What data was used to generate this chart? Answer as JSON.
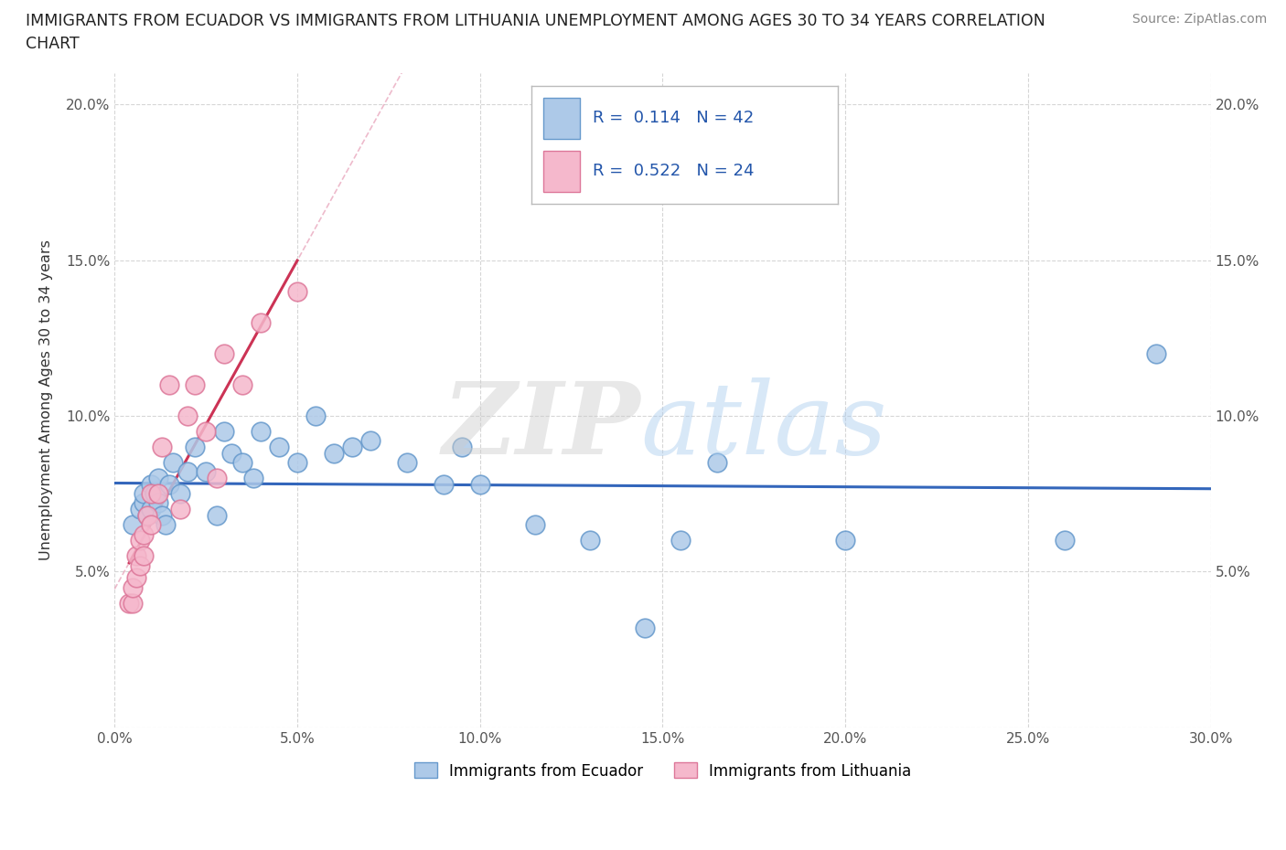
{
  "title_line1": "IMMIGRANTS FROM ECUADOR VS IMMIGRANTS FROM LITHUANIA UNEMPLOYMENT AMONG AGES 30 TO 34 YEARS CORRELATION",
  "title_line2": "CHART",
  "source": "Source: ZipAtlas.com",
  "ylabel": "Unemployment Among Ages 30 to 34 years",
  "xlim": [
    0.0,
    0.3
  ],
  "ylim": [
    0.0,
    0.21
  ],
  "xticks": [
    0.0,
    0.05,
    0.1,
    0.15,
    0.2,
    0.25,
    0.3
  ],
  "yticks": [
    0.0,
    0.05,
    0.1,
    0.15,
    0.2
  ],
  "ecuador_color": "#adc9e8",
  "ecuador_edge": "#6699cc",
  "lithuania_color": "#f5b8cc",
  "lithuania_edge": "#dd7799",
  "ecuador_R": "0.114",
  "ecuador_N": "42",
  "lithuania_R": "0.522",
  "lithuania_N": "24",
  "trend_ecuador_color": "#3366bb",
  "trend_lithuania_color": "#cc3355",
  "ecuador_x": [
    0.005,
    0.007,
    0.008,
    0.008,
    0.009,
    0.01,
    0.01,
    0.011,
    0.012,
    0.012,
    0.013,
    0.014,
    0.015,
    0.016,
    0.018,
    0.02,
    0.022,
    0.025,
    0.028,
    0.03,
    0.032,
    0.035,
    0.038,
    0.04,
    0.045,
    0.05,
    0.055,
    0.06,
    0.065,
    0.07,
    0.08,
    0.09,
    0.095,
    0.1,
    0.115,
    0.13,
    0.145,
    0.155,
    0.165,
    0.2,
    0.26,
    0.285
  ],
  "ecuador_y": [
    0.065,
    0.07,
    0.072,
    0.075,
    0.068,
    0.07,
    0.078,
    0.075,
    0.072,
    0.08,
    0.068,
    0.065,
    0.078,
    0.085,
    0.075,
    0.082,
    0.09,
    0.082,
    0.068,
    0.095,
    0.088,
    0.085,
    0.08,
    0.095,
    0.09,
    0.085,
    0.1,
    0.088,
    0.09,
    0.092,
    0.085,
    0.078,
    0.09,
    0.078,
    0.065,
    0.06,
    0.032,
    0.06,
    0.085,
    0.06,
    0.06,
    0.12
  ],
  "lithuania_x": [
    0.004,
    0.005,
    0.005,
    0.006,
    0.006,
    0.007,
    0.007,
    0.008,
    0.008,
    0.009,
    0.01,
    0.01,
    0.012,
    0.013,
    0.015,
    0.018,
    0.02,
    0.022,
    0.025,
    0.028,
    0.03,
    0.035,
    0.04,
    0.05
  ],
  "lithuania_y": [
    0.04,
    0.04,
    0.045,
    0.048,
    0.055,
    0.052,
    0.06,
    0.055,
    0.062,
    0.068,
    0.065,
    0.075,
    0.075,
    0.09,
    0.11,
    0.07,
    0.1,
    0.11,
    0.095,
    0.08,
    0.12,
    0.11,
    0.13,
    0.14
  ]
}
